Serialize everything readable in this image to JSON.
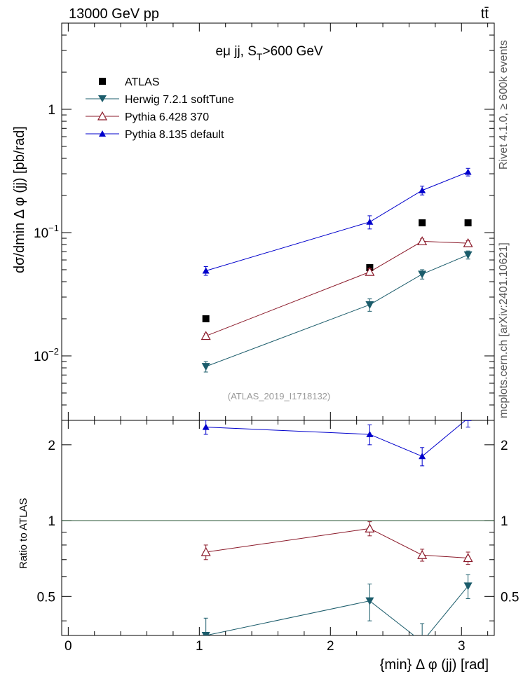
{
  "header": {
    "energy": "13000 GeV pp",
    "process": "tt̄"
  },
  "side": {
    "rivet": "Rivet 4.1.0, ≥ 600k events",
    "mcplots": "mcplots.cern.ch [arXiv:2401.10621]"
  },
  "chart_data": [
    {
      "type": "scatter",
      "panel": "main",
      "title": "eμ jj, S",
      "title_sub": "T",
      "title_tail": ">600 GeV",
      "ylabel": "dσ/dmin Δ φ (jj) [pb/rad]",
      "yscale": "log",
      "ylim": [
        0.003,
        5
      ],
      "xlim": [
        -0.05,
        3.25
      ],
      "yticks": [
        {
          "value": 0.01,
          "base": "10",
          "exp": "−2"
        },
        {
          "value": 0.1,
          "base": "10",
          "exp": "−1"
        },
        {
          "value": 1,
          "base": "1",
          "exp": ""
        }
      ],
      "watermark": "(ATLAS_2019_I1718132)",
      "x": [
        1.05,
        2.3,
        2.7,
        3.05
      ],
      "series": [
        {
          "name": "ATLAS",
          "color": "#000000",
          "marker": "square",
          "values": [
            0.02,
            0.052,
            0.12,
            0.12
          ],
          "err": [
            0,
            0,
            0,
            0
          ]
        },
        {
          "name": "Herwig 7.2.1 softTune",
          "color": "#1b5c6b",
          "marker": "triangle-down",
          "values": [
            0.0082,
            0.026,
            0.046,
            0.066
          ],
          "err": [
            0.0008,
            0.003,
            0.004,
            0.005
          ]
        },
        {
          "name": "Pythia 6.428 370",
          "color": "#8b1a2a",
          "marker": "triangle-up-open",
          "values": [
            0.0145,
            0.048,
            0.085,
            0.082
          ],
          "err": [
            0.0007,
            0.003,
            0.004,
            0.004
          ]
        },
        {
          "name": "Pythia 8.135 default",
          "color": "#0000cc",
          "marker": "triangle-up",
          "values": [
            0.049,
            0.122,
            0.22,
            0.31
          ],
          "err": [
            0.004,
            0.015,
            0.018,
            0.022
          ]
        }
      ]
    },
    {
      "type": "scatter",
      "panel": "ratio",
      "ylabel": "Ratio to ATLAS",
      "xlabel": "{min} Δ φ (jj) [rad]",
      "yscale": "log",
      "ylim": [
        0.35,
        2.5
      ],
      "xlim": [
        -0.05,
        3.25
      ],
      "xticks": [
        0,
        1,
        2,
        3
      ],
      "yticks": [
        0.5,
        1,
        2
      ],
      "ytick_labels": [
        "0.5",
        "1",
        "2"
      ],
      "reference": 1,
      "x": [
        1.05,
        2.3,
        2.7,
        3.05
      ],
      "series": [
        {
          "name": "Herwig 7.2.1 softTune",
          "color": "#1b5c6b",
          "marker": "triangle-down",
          "values": [
            0.35,
            0.48,
            0.33,
            0.55
          ],
          "err": [
            0.06,
            0.08,
            0.06,
            0.06
          ]
        },
        {
          "name": "Pythia 6.428 370",
          "color": "#8b1a2a",
          "marker": "triangle-up-open",
          "values": [
            0.75,
            0.93,
            0.73,
            0.71
          ],
          "err": [
            0.05,
            0.06,
            0.04,
            0.04
          ]
        },
        {
          "name": "Pythia 8.135 default",
          "color": "#0000cc",
          "marker": "triangle-up",
          "values": [
            2.35,
            2.2,
            1.8,
            2.55
          ],
          "err": [
            0.15,
            0.2,
            0.15,
            0.2
          ]
        }
      ]
    }
  ]
}
